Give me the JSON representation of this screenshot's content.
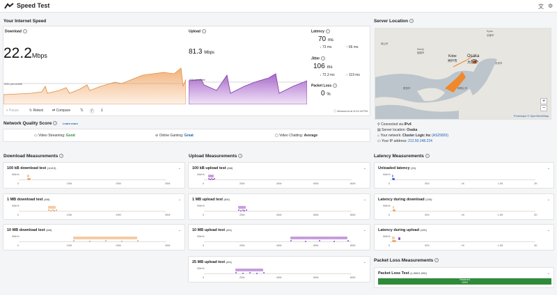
{
  "header": {
    "title": "Speed Test",
    "icons": [
      "translate-icon",
      "settings-icon"
    ]
  },
  "speed": {
    "section": "Your Internet Speed",
    "download": {
      "label": "Download",
      "value": "22.2",
      "unit": "Mbps",
      "pct": "90th percentile"
    },
    "upload": {
      "label": "Upload",
      "value": "81.3",
      "unit": "Mbps",
      "pct": "90th percentile"
    },
    "latency": {
      "label": "Latency",
      "value": "70",
      "unit": "ms",
      "down": "73 ms",
      "up": "66 ms"
    },
    "jitter": {
      "label": "Jitter",
      "value": "106",
      "unit": "ms",
      "down": "72.3 ms",
      "up": "119 ms"
    },
    "loss": {
      "label": "Packet Loss",
      "value": "0",
      "unit": "%"
    },
    "buttons": {
      "pause": "Pause",
      "retest": "Retest",
      "compare": "Compare"
    },
    "measured": "Measured at 8:14:18 PM"
  },
  "nq": {
    "title": "Network Quality Score",
    "learn": "Learn more",
    "streaming_label": "Video Streaming:",
    "streaming": "Good",
    "gaming_label": "Online Gaming:",
    "gaming": "Great",
    "chat_label": "Video Chatting:",
    "chat": "Average"
  },
  "server": {
    "title": "Server Location",
    "map_labels": {
      "kyoto": "Kyoto",
      "kyoto_jp": "京都市",
      "himeji": "Himeji",
      "himeji_jp": "姫路市",
      "kobe": "Kobe",
      "kobe_jp": "神戸市",
      "osaka": "Osaka",
      "osaka_jp": "大阪市",
      "nara_jp": "奈良市",
      "wakayama_jp": "和歌山市",
      "tokushima_jp": "徳島市",
      "hiroshima_jp": "岡山市"
    },
    "attribution": "Protomaps © OpenStreetMap",
    "connected_label": "Connected via",
    "connected": "IPv4",
    "location_label": "Server location:",
    "location": "Osaka",
    "network_label": "Your network:",
    "network": "Cluster Logic Inc",
    "asn": "(AS25820)",
    "ip_label": "Your IP address:",
    "ip": "212.50.248.224"
  },
  "download": {
    "title": "Download Measurements",
    "tests": [
      {
        "name": "100 kB download test",
        "count": "(10/10)",
        "ticks": [
          "0",
          "10M",
          "20M",
          "30M"
        ]
      },
      {
        "name": "1 MB download test",
        "count": "(8/8)",
        "ticks": [
          "0",
          "10M",
          "20M",
          "30M"
        ]
      },
      {
        "name": "10 MB download test",
        "count": "(6/6)",
        "ticks": [
          "0",
          "10M",
          "20M",
          "30M"
        ]
      }
    ]
  },
  "upload": {
    "title": "Upload Measurements",
    "tests": [
      {
        "name": "100 kB upload test",
        "count": "(8/8)",
        "ticks": [
          "0",
          "20M",
          "40M",
          "60M",
          "80M"
        ]
      },
      {
        "name": "1 MB upload test",
        "count": "(6/6)",
        "ticks": [
          "0",
          "20M",
          "40M",
          "60M",
          "80M"
        ]
      },
      {
        "name": "10 MB upload test",
        "count": "(4/4)",
        "ticks": [
          "0",
          "20M",
          "40M",
          "60M",
          "80M"
        ]
      },
      {
        "name": "25 MB upload test",
        "count": "(4/4)",
        "ticks": [
          "0",
          "20M",
          "40M",
          "60M",
          "80M"
        ]
      }
    ]
  },
  "latency": {
    "title": "Latency Measurements",
    "tests": [
      {
        "name": "Unloaded latency",
        "count": "(20)",
        "ticks": [
          "0",
          "500",
          "1K",
          "1.5K",
          "2K"
        ]
      },
      {
        "name": "Latency during download",
        "count": "(100)",
        "ticks": [
          "0",
          "500",
          "1K",
          "1.5K",
          "2K"
        ]
      },
      {
        "name": "Latency during upload",
        "count": "(100)",
        "ticks": [
          "0",
          "500",
          "1K",
          "1.5K",
          "2K"
        ]
      }
    ]
  },
  "packet": {
    "title": "Packet Loss Measurements",
    "test": "Packet Loss Test",
    "count": "(1,000/1,000)",
    "received": "Received",
    "received_pct": "100%"
  },
  "row_axis": "90th%",
  "colors": {
    "download": "#f0a05a",
    "upload": "#9b4fc4",
    "latency": "#3a5ad8",
    "received": "#2e8b3a"
  }
}
